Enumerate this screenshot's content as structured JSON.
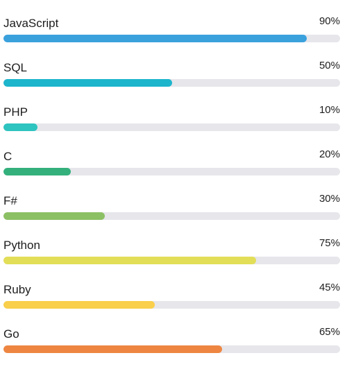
{
  "skills": [
    {
      "name": "JavaScript",
      "percent_label": "90%",
      "value": 0.9,
      "color": "#3aa1dd"
    },
    {
      "name": "SQL",
      "percent_label": "50%",
      "value": 0.5,
      "color": "#1db5cc"
    },
    {
      "name": "PHP",
      "percent_label": "10%",
      "value": 0.1,
      "color": "#2ec4bf"
    },
    {
      "name": "C",
      "percent_label": "20%",
      "value": 0.2,
      "color": "#34b07c"
    },
    {
      "name": "F#",
      "percent_label": "30%",
      "value": 0.3,
      "color": "#8cc064"
    },
    {
      "name": "Python",
      "percent_label": "75%",
      "value": 0.75,
      "color": "#e2de58"
    },
    {
      "name": "Ruby",
      "percent_label": "45%",
      "value": 0.45,
      "color": "#f9cf4b"
    },
    {
      "name": "Go",
      "percent_label": "65%",
      "value": 0.65,
      "color": "#ee8642"
    }
  ]
}
